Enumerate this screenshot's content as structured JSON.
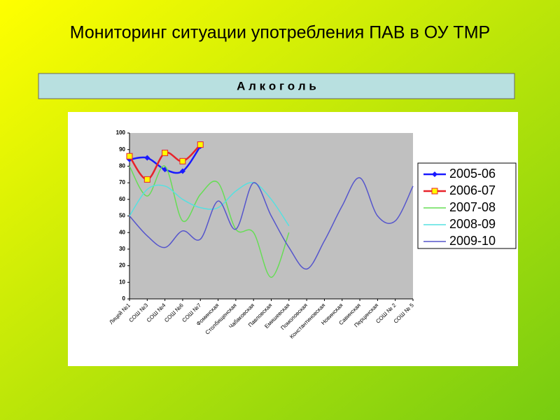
{
  "header": {
    "title": "Мониторинг ситуации употребления ПАВ в ОУ ТМР",
    "subtitle": "А л к о г о л ь"
  },
  "chart_data": {
    "type": "line",
    "categories": [
      "Лицей №1",
      "СОШ №3",
      "СОШ №4",
      "СОШ №6",
      "СОШ №7",
      "Фоминская",
      "Столбищенская",
      "Чабаковская",
      "Павловская",
      "Емишевская",
      "Помоловская",
      "Константиновская",
      "Новинская",
      "Савинская",
      "Перцинская",
      "СОШ № 2",
      "СОШ № 5"
    ],
    "series": [
      {
        "name": "2005-06",
        "color": "#1a1aff",
        "marker": "diamond",
        "values": [
          84,
          85,
          78,
          77,
          92,
          null,
          null,
          null,
          null,
          null,
          null,
          null,
          null,
          null,
          null,
          null,
          null
        ]
      },
      {
        "name": "2006-07",
        "color": "#e8222a",
        "marker": "square",
        "values": [
          86,
          72,
          88,
          83,
          93,
          null,
          null,
          null,
          null,
          null,
          null,
          null,
          null,
          null,
          null,
          null,
          null
        ]
      },
      {
        "name": "2007-08",
        "color": "#66dd55",
        "values": [
          80,
          62,
          80,
          47,
          63,
          70,
          42,
          40,
          13,
          40,
          null,
          null,
          null,
          null,
          null,
          null,
          null
        ]
      },
      {
        "name": "2008-09",
        "color": "#55e0e0",
        "values": [
          50,
          66,
          68,
          60,
          55,
          55,
          65,
          70,
          60,
          44,
          null,
          null,
          null,
          null,
          null,
          null,
          null
        ]
      },
      {
        "name": "2009-10",
        "color": "#5555cc",
        "values": [
          50,
          38,
          31,
          41,
          36,
          59,
          42,
          70,
          50,
          31,
          18,
          35,
          56,
          73,
          50,
          47,
          68
        ]
      }
    ],
    "ylim": [
      0,
      100
    ],
    "yticks": [
      0,
      10,
      20,
      30,
      40,
      50,
      60,
      70,
      80,
      90,
      100
    ],
    "legend": "right",
    "smooth": true
  }
}
